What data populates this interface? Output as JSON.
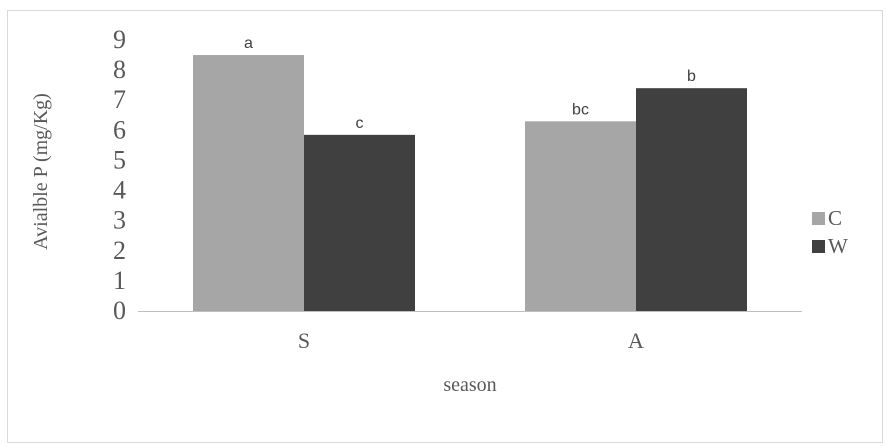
{
  "chart_data": {
    "type": "bar",
    "title": "",
    "xlabel": "season",
    "ylabel": "Avialble P (mg/Kg)",
    "categories": [
      "S",
      "A"
    ],
    "ylim": [
      0,
      9
    ],
    "yticks": [
      "0",
      "1",
      "2",
      "3",
      "4",
      "5",
      "6",
      "7",
      "8",
      "9"
    ],
    "grid": false,
    "legend_position": "right",
    "series": [
      {
        "name": "C",
        "color": "#a6a6a6",
        "values": [
          8.5,
          6.3
        ],
        "labels": [
          "a",
          "bc"
        ]
      },
      {
        "name": "W",
        "color": "#404040",
        "values": [
          5.85,
          7.4
        ],
        "labels": [
          "c",
          "b"
        ]
      }
    ]
  }
}
